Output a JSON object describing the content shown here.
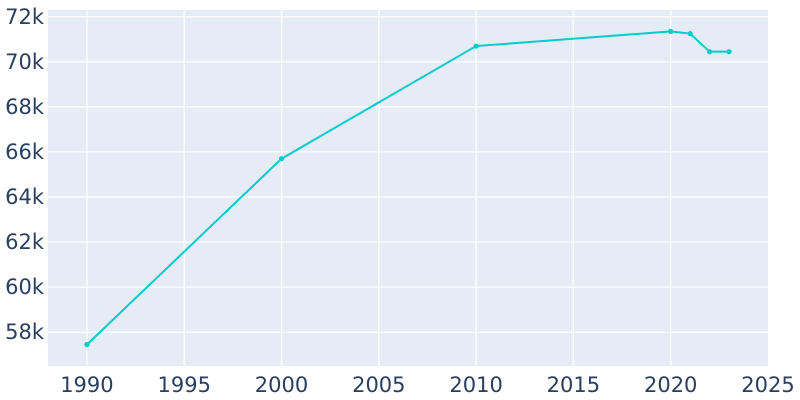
{
  "chart_data": {
    "type": "line",
    "title": "",
    "xlabel": "",
    "ylabel": "",
    "xlim": [
      1988,
      2025
    ],
    "ylim": [
      56500,
      72300
    ],
    "x_ticks": [
      1990,
      1995,
      2000,
      2005,
      2010,
      2015,
      2020,
      2025
    ],
    "x_tick_labels": [
      "1990",
      "1995",
      "2000",
      "2005",
      "2010",
      "2015",
      "2020",
      "2025"
    ],
    "y_ticks": [
      58000,
      60000,
      62000,
      64000,
      66000,
      68000,
      70000,
      72000
    ],
    "y_tick_labels": [
      "58k",
      "60k",
      "62k",
      "64k",
      "66k",
      "68k",
      "70k",
      "72k"
    ],
    "grid": true,
    "legend": "none",
    "colors": {
      "background": "#e5ecf6",
      "grid": "#ffffff",
      "line": "#00cccc",
      "text": "#2a3f5f"
    },
    "series": [
      {
        "x": [
          1990,
          2000,
          2010,
          2020,
          2021,
          2022,
          2023
        ],
        "values": [
          57450,
          65700,
          70700,
          71350,
          71250,
          70450,
          70450
        ]
      }
    ]
  }
}
